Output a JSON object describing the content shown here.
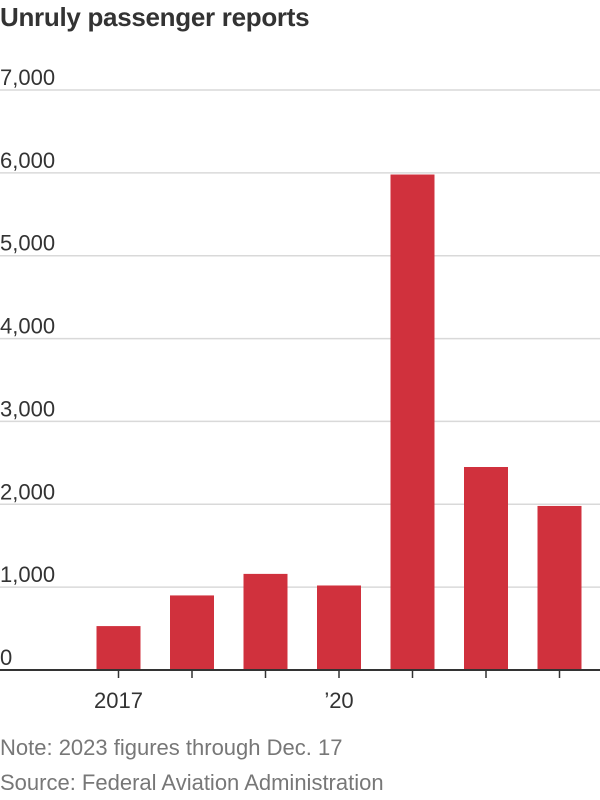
{
  "chart_data": {
    "type": "bar",
    "title": "Unruly passenger reports",
    "categories": [
      "2017",
      "2018",
      "2019",
      "2020",
      "2021",
      "2022",
      "2023"
    ],
    "x_tick_labels": [
      "2017",
      "",
      "",
      "’20",
      "",
      "",
      ""
    ],
    "values": [
      530,
      900,
      1160,
      1020,
      5980,
      2450,
      1980
    ],
    "ylim": [
      0,
      7000
    ],
    "y_ticks": [
      0,
      1000,
      2000,
      3000,
      4000,
      5000,
      6000,
      7000
    ],
    "y_tick_labels": [
      "0",
      "1,000",
      "2,000",
      "3,000",
      "4,000",
      "5,000",
      "6,000",
      "7,000"
    ],
    "grid": true,
    "bar_color": "#d0313d",
    "xlabel": "",
    "ylabel": ""
  },
  "footer": {
    "note": "Note: 2023 figures through Dec. 17",
    "source": "Source: Federal Aviation Administration"
  }
}
